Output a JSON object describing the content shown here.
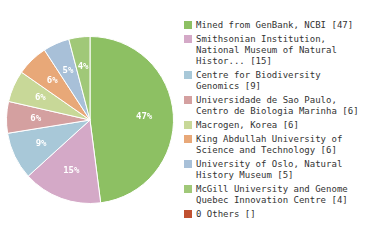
{
  "chart_data": {
    "type": "pie",
    "categories": [
      "Mined from GenBank, NCBI [47]",
      "Smithsonian Institution,\nNational Museum of Natural\nHistor... [15]",
      "Centre for Biodiversity\nGenomics [9]",
      "Universidade de Sao Paulo,\nCentro de Biologia Marinha [6]",
      "Macrogen, Korea [6]",
      "King Abdullah University of\nScience and Technology [6]",
      "University of Oslo, Natural\nHistory Museum [5]",
      "McGill University and Genome\nQuebec Innovation Centre [4]",
      "0 Others []"
    ],
    "values": [
      47,
      15,
      9,
      6,
      6,
      6,
      5,
      4,
      0
    ],
    "value_labels": [
      "47%",
      "15%",
      "9%",
      "6%",
      "6%",
      "6%",
      "5%",
      "4%",
      null
    ],
    "colors": [
      "#8DC063",
      "#D4A9C7",
      "#A8C8D8",
      "#D4A0A0",
      "#C8D898",
      "#E8A878",
      "#A8C0D8",
      "#A0C878",
      "#C05030"
    ],
    "legend": "right"
  }
}
